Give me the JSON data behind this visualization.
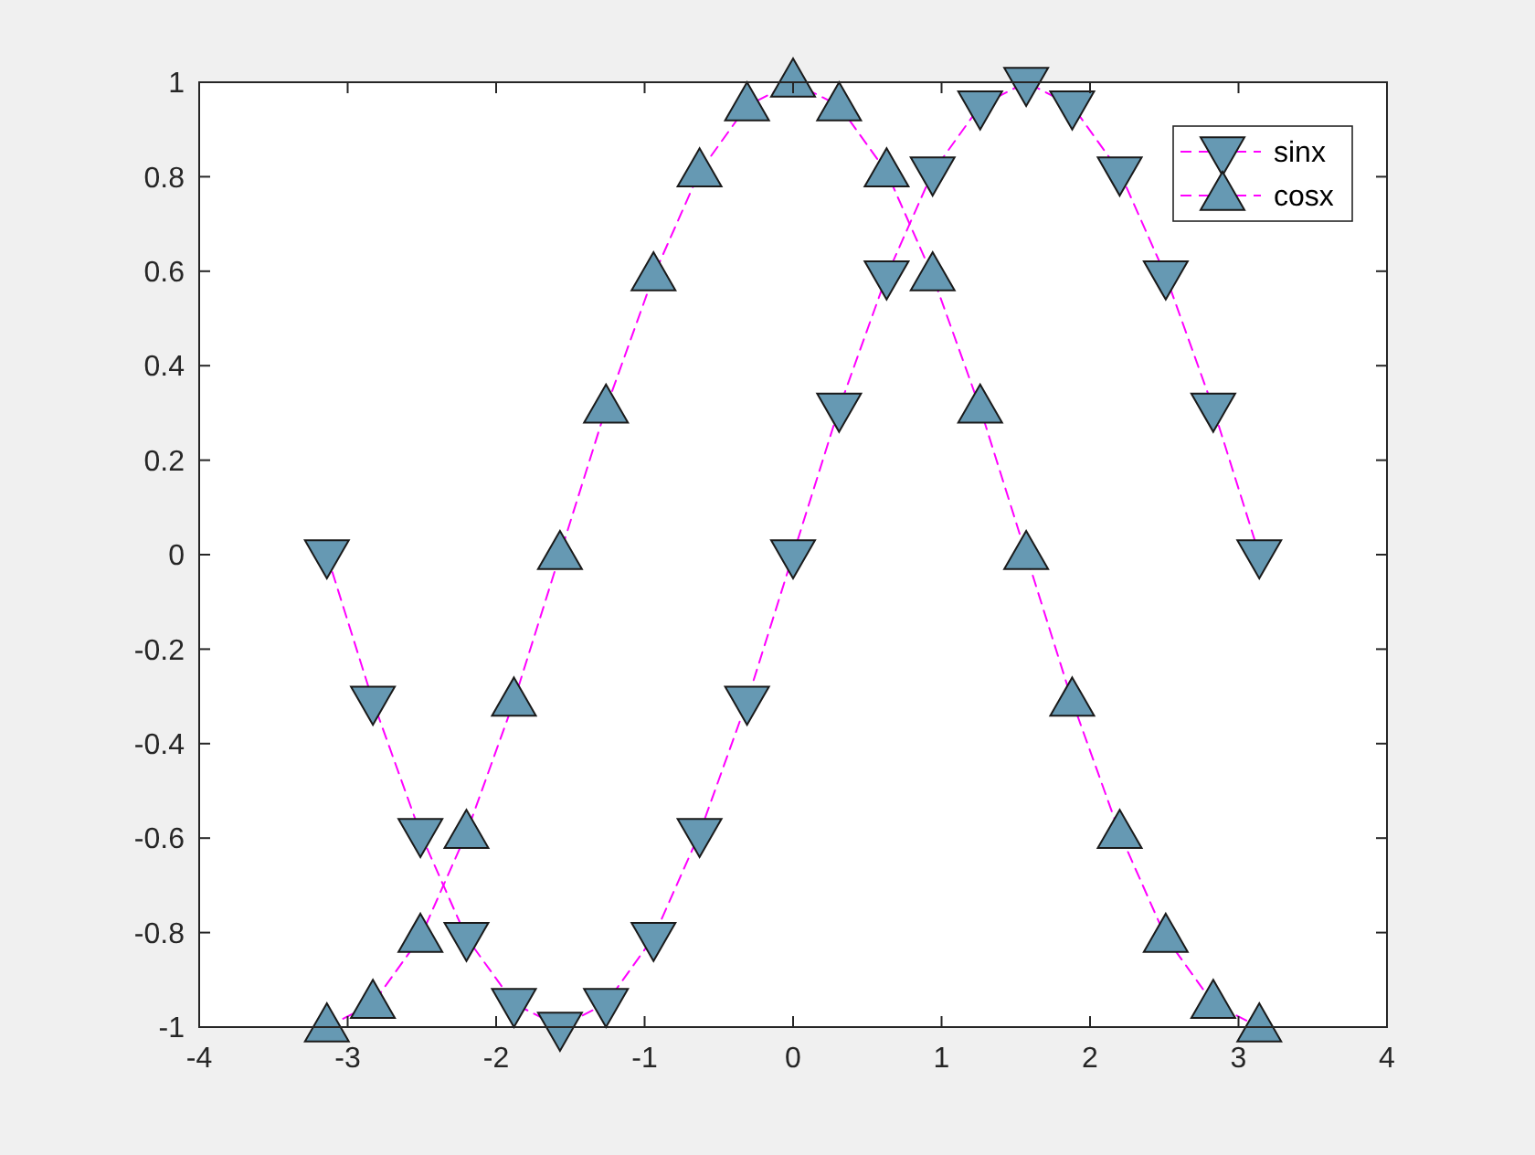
{
  "chart_data": {
    "type": "line",
    "x": [
      -3.14,
      -2.83,
      -2.51,
      -2.2,
      -1.88,
      -1.57,
      -1.26,
      -0.94,
      -0.63,
      -0.31,
      0,
      0.31,
      0.63,
      0.94,
      1.26,
      1.57,
      1.88,
      2.2,
      2.51,
      2.83,
      3.14
    ],
    "xlim": [
      -4,
      4
    ],
    "xticks": [
      -4,
      -3,
      -2,
      -1,
      0,
      1,
      2,
      3,
      4
    ],
    "ylim": [
      -1,
      1
    ],
    "yticks": [
      -1,
      -0.8,
      -0.6,
      -0.4,
      -0.2,
      0,
      0.2,
      0.4,
      0.6,
      0.8,
      1
    ],
    "legend": "top right",
    "line_style": "dashed",
    "series": [
      {
        "name": "sinx",
        "color": "#ff00ff",
        "marker": "triangle-down",
        "colors": [
          "#6699b3",
          "#6699b3",
          "#6699b3",
          "#6699b3",
          "#6699b3",
          "#6699b3",
          "#6699b3",
          "#6699b3",
          "#6699b3",
          "#6699b3",
          "#6699b3",
          "#6699b3",
          "#6699b3",
          "#6699b3",
          "#6699b3",
          "#6699b3",
          "#6699b3",
          "#6699b3",
          "#6699b3",
          "#6699b3",
          "#6699b3"
        ],
        "values": [
          0,
          -0.31,
          -0.59,
          -0.81,
          -0.95,
          -1,
          -0.95,
          -0.81,
          -0.59,
          -0.31,
          0,
          0.31,
          0.59,
          0.81,
          0.95,
          1,
          0.95,
          0.81,
          0.59,
          0.31,
          0
        ]
      },
      {
        "name": "cosx",
        "color": "#ff00ff",
        "marker": "triangle",
        "colors": [
          "#6699b3",
          "#6699b3",
          "#6699b3",
          "#6699b3",
          "#6699b3",
          "#6699b3",
          "#6699b3",
          "#6699b3",
          "#6699b3",
          "#6699b3",
          "#6699b3",
          "#6699b3",
          "#6699b3",
          "#6699b3",
          "#6699b3",
          "#6699b3",
          "#6699b3",
          "#6699b3",
          "#6699b3",
          "#6699b3",
          "#6699b3"
        ],
        "values": [
          -1,
          -0.95,
          -0.81,
          -0.59,
          -0.31,
          0,
          0.31,
          0.59,
          0.81,
          0.95,
          1,
          0.95,
          0.81,
          0.59,
          0.31,
          0,
          -0.31,
          -0.59,
          -0.81,
          -0.95,
          -1
        ]
      }
    ]
  }
}
